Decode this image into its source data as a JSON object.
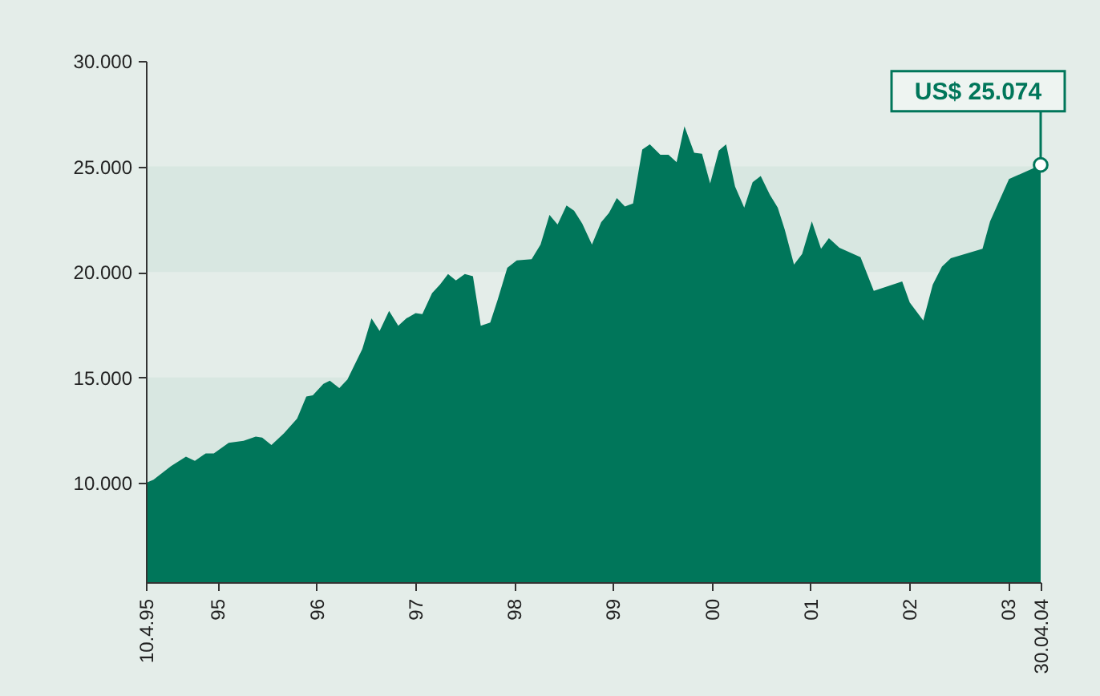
{
  "chart_data": {
    "type": "area",
    "x": [
      "1995-04-10",
      "1995-05-08",
      "1995-07-12",
      "1995-09-05",
      "1995-10-08",
      "1995-11-17",
      "1995-12-17",
      "1996-02-10",
      "1996-04-05",
      "1996-05-20",
      "1996-06-13",
      "1996-07-17",
      "1996-09-01",
      "1996-10-20",
      "1996-11-23",
      "1996-12-17",
      "1997-01-25",
      "1997-02-18",
      "1997-03-25",
      "1997-04-24",
      "1997-06-18",
      "1997-07-22",
      "1997-08-21",
      "1997-09-25",
      "1997-10-29",
      "1997-11-28",
      "1998-01-01",
      "1998-01-26",
      "1998-03-03",
      "1998-04-01",
      "1998-05-01",
      "1998-05-30",
      "1998-07-02",
      "1998-08-01",
      "1998-08-30",
      "1998-10-04",
      "1998-11-01",
      "1998-12-06",
      "1999-01-10",
      "1999-03-06",
      "1999-04-08",
      "1999-05-11",
      "1999-06-10",
      "1999-07-13",
      "1999-08-10",
      "1999-09-09",
      "1999-10-15",
      "1999-11-18",
      "1999-12-17",
      "2000-01-15",
      "2000-02-14",
      "2000-03-15",
      "2000-04-18",
      "2000-05-16",
      "2000-06-24",
      "2000-07-24",
      "2000-08-23",
      "2000-09-21",
      "2000-10-27",
      "2000-11-25",
      "2000-12-25",
      "2001-01-26",
      "2001-02-22",
      "2001-03-27",
      "2001-04-30",
      "2001-05-31",
      "2001-06-30",
      "2001-08-03",
      "2001-09-01",
      "2001-09-27",
      "2001-10-31",
      "2001-11-30",
      "2002-01-05",
      "2002-02-08",
      "2002-03-09",
      "2002-04-17",
      "2002-07-04",
      "2002-08-22",
      "2002-12-05",
      "2003-01-02",
      "2003-02-21",
      "2003-03-28",
      "2003-05-01",
      "2003-06-03",
      "2003-09-28",
      "2003-10-26",
      "2004-01-04",
      "2004-04-30"
    ],
    "series": [
      {
        "color": "#00765a",
        "values": [
          10000,
          10150,
          10800,
          11250,
          11050,
          11400,
          11400,
          11900,
          12000,
          12200,
          12150,
          11800,
          12350,
          13050,
          14100,
          14150,
          14700,
          14850,
          14500,
          14900,
          16350,
          17800,
          17200,
          18150,
          17450,
          17800,
          18050,
          18000,
          19000,
          19400,
          19900,
          19600,
          19900,
          19800,
          17450,
          17600,
          18700,
          20200,
          20550,
          20600,
          21300,
          22700,
          22250,
          23150,
          22900,
          22300,
          21300,
          22350,
          22800,
          23500,
          23100,
          23250,
          25800,
          26050,
          25550,
          25550,
          25200,
          26900,
          25650,
          25600,
          24200,
          25750,
          26050,
          24050,
          23050,
          24250,
          24550,
          23650,
          23050,
          22000,
          20350,
          20850,
          22400,
          21100,
          21600,
          21150,
          20700,
          19100,
          19550,
          18550,
          17700,
          19400,
          20250,
          20650,
          21100,
          22400,
          24400,
          25074
        ]
      }
    ],
    "xlim": [
      "1995-04-10",
      "2004-04-30"
    ],
    "xticks": [
      {
        "value": "1995-04-10",
        "label": "10.4.95"
      },
      {
        "value": "1995-12-31",
        "label": "95"
      },
      {
        "value": "1996-12-31",
        "label": "96"
      },
      {
        "value": "1997-12-31",
        "label": "97"
      },
      {
        "value": "1998-12-31",
        "label": "98"
      },
      {
        "value": "1999-12-31",
        "label": "99"
      },
      {
        "value": "2000-12-31",
        "label": "00"
      },
      {
        "value": "2001-12-31",
        "label": "01"
      },
      {
        "value": "2002-12-31",
        "label": "02"
      },
      {
        "value": "2003-12-31",
        "label": "03"
      },
      {
        "value": "2004-04-30",
        "label": "30.04.04"
      }
    ],
    "ylim": [
      5300,
      30000
    ],
    "yticks": [
      {
        "value": 10000,
        "label": "10.000"
      },
      {
        "value": 15000,
        "label": "15.000"
      },
      {
        "value": 20000,
        "label": "20.000"
      },
      {
        "value": 25000,
        "label": "25.000"
      },
      {
        "value": 30000,
        "label": "30.000"
      }
    ],
    "bands": [
      {
        "axis": "y",
        "from": 10000,
        "to": 15000,
        "color": "#d8e7e1"
      },
      {
        "axis": "y",
        "from": 20000,
        "to": 25000,
        "color": "#d8e7e1"
      }
    ],
    "annotations": [
      {
        "text": "US$ 25.074",
        "x": "2004-04-30",
        "y": 25074
      }
    ],
    "grid": false
  }
}
